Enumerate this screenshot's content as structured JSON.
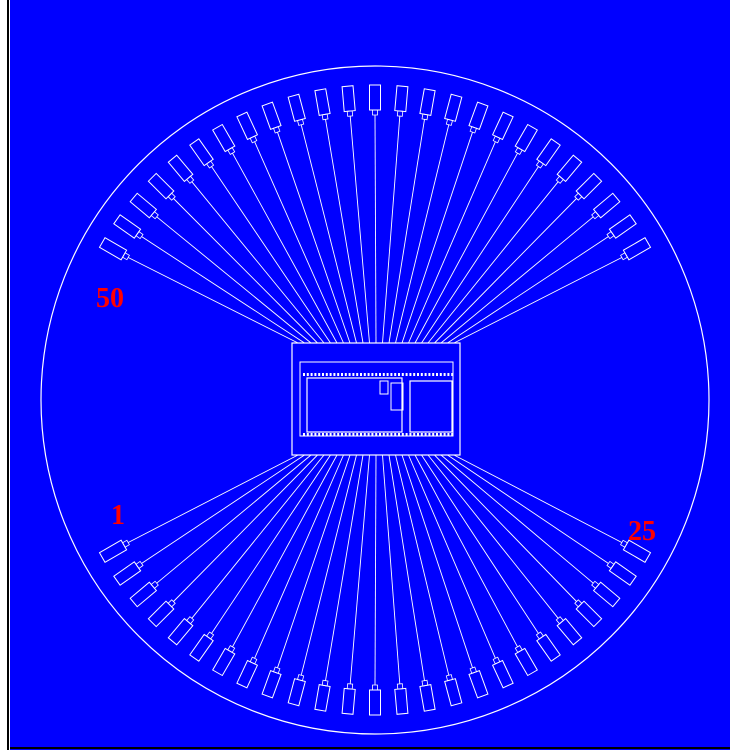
{
  "diagram": {
    "background_color": "#0000FF",
    "line_color": "#FFFFFF",
    "label_color": "#FF0000",
    "pad_count": 50,
    "pad_labels": {
      "first": "1",
      "quarter": "25",
      "last": "50"
    }
  }
}
